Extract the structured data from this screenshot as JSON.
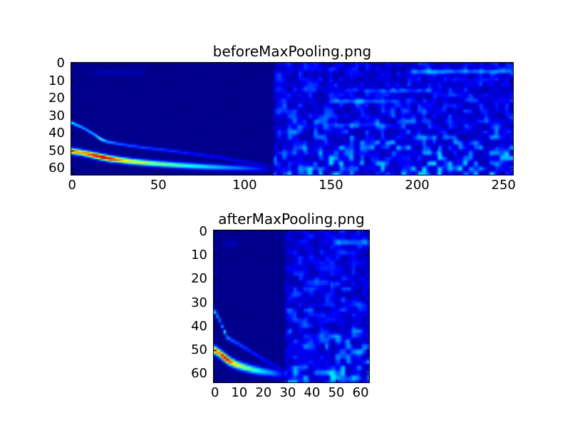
{
  "figure": {
    "background": "#ffffff",
    "spine_color": "#000000",
    "text_color": "#000000"
  },
  "chart_data": [
    {
      "type": "heatmap",
      "title": "beforeMaxPooling.png",
      "xlabel": "",
      "ylabel": "",
      "colormap": "jet",
      "grid": false,
      "legend": false,
      "grid_size": {
        "cols": 256,
        "rows": 64
      },
      "xlim": [
        -0.5,
        255.5
      ],
      "ylim": [
        63.5,
        -0.5
      ],
      "xticks": [
        0,
        50,
        100,
        150,
        200,
        250
      ],
      "yticks": [
        0,
        10,
        20,
        30,
        40,
        50,
        60
      ],
      "background_value": 0.018,
      "noise_region": {
        "x_start": 117,
        "base_value": 0.055,
        "amp_top": 0.06,
        "amp_bottom": 0.17,
        "y_power": 1.7,
        "blob_scale": 3.0,
        "fine_scale": 1.5,
        "fine_amp": 0.05,
        "seed": 12345
      },
      "streaks": [
        {
          "y": 4.5,
          "x0": 196,
          "x1": 255,
          "v": 0.17
        },
        {
          "y": 5.0,
          "x0": 12,
          "x1": 42,
          "v": 0.045
        },
        {
          "y": 15.5,
          "x0": 168,
          "x1": 208,
          "v": 0.1
        },
        {
          "y": 21.5,
          "x0": 148,
          "x1": 190,
          "v": 0.12
        },
        {
          "y": 35.0,
          "x0": 148,
          "x1": 186,
          "v": 0.08
        }
      ],
      "curves": [
        {
          "name": "main-chirp",
          "sigma": 1.15,
          "points": [
            [
              0,
              50.0,
              0.8
            ],
            [
              6,
              51.0,
              0.72
            ],
            [
              12,
              52.2,
              0.88
            ],
            [
              17,
              53.3,
              0.97
            ],
            [
              22,
              54.3,
              0.9
            ],
            [
              28,
              55.1,
              0.72
            ],
            [
              36,
              56.1,
              0.62
            ],
            [
              48,
              57.1,
              0.52
            ],
            [
              62,
              58.1,
              0.45
            ],
            [
              78,
              58.9,
              0.35
            ],
            [
              95,
              59.6,
              0.25
            ],
            [
              108,
              60.1,
              0.15
            ],
            [
              118,
              60.4,
              0.0
            ]
          ]
        },
        {
          "name": "faint-harmonic",
          "sigma": 0.65,
          "points": [
            [
              0,
              33.8,
              0.38
            ],
            [
              7,
              37.0,
              0.3
            ],
            [
              13,
              40.5,
              0.32
            ],
            [
              16,
              42.8,
              0.5
            ],
            [
              20,
              44.5,
              0.3
            ],
            [
              28,
              46.0,
              0.22
            ],
            [
              40,
              47.8,
              0.2
            ],
            [
              55,
              49.5,
              0.17
            ],
            [
              70,
              51.5,
              0.14
            ],
            [
              85,
              53.5,
              0.12
            ],
            [
              100,
              56.0,
              0.09
            ],
            [
              112,
              58.0,
              0.05
            ],
            [
              118,
              59.0,
              0.0
            ]
          ]
        }
      ]
    },
    {
      "type": "heatmap",
      "title": "afterMaxPooling.png",
      "xlabel": "",
      "ylabel": "",
      "colormap": "jet",
      "grid": false,
      "legend": false,
      "grid_size": {
        "cols": 64,
        "rows": 64
      },
      "xlim": [
        -0.5,
        63.5
      ],
      "ylim": [
        63.5,
        -0.5
      ],
      "xticks": [
        0,
        10,
        20,
        30,
        40,
        50,
        60
      ],
      "yticks": [
        0,
        10,
        20,
        30,
        40,
        50,
        60
      ],
      "background_value": 0.018,
      "noise_region": {
        "x_start": 29,
        "base_value": 0.055,
        "amp_top": 0.06,
        "amp_bottom": 0.17,
        "y_power": 1.7,
        "blob_scale": 2.2,
        "fine_scale": 1.2,
        "fine_amp": 0.05,
        "seed": 99
      },
      "streaks": [
        {
          "y": 4.5,
          "x0": 49,
          "x1": 64,
          "v": 0.17
        },
        {
          "y": 5.0,
          "x0": 3,
          "x1": 10,
          "v": 0.045
        },
        {
          "y": 15.5,
          "x0": 42,
          "x1": 52,
          "v": 0.1
        },
        {
          "y": 21.5,
          "x0": 37,
          "x1": 48,
          "v": 0.12
        },
        {
          "y": 35.0,
          "x0": 37,
          "x1": 47,
          "v": 0.08
        }
      ],
      "curves": [
        {
          "name": "main-chirp",
          "sigma": 1.15,
          "points": [
            [
              0,
              50.0,
              0.8
            ],
            [
              1.5,
              51.0,
              0.72
            ],
            [
              3,
              52.2,
              0.88
            ],
            [
              4.3,
              53.3,
              0.97
            ],
            [
              5.5,
              54.3,
              0.9
            ],
            [
              7,
              55.1,
              0.72
            ],
            [
              9,
              56.1,
              0.62
            ],
            [
              12,
              57.1,
              0.52
            ],
            [
              15.5,
              58.1,
              0.45
            ],
            [
              19.5,
              58.9,
              0.35
            ],
            [
              24,
              59.6,
              0.25
            ],
            [
              27,
              60.1,
              0.15
            ],
            [
              29.5,
              60.4,
              0.0
            ]
          ]
        },
        {
          "name": "faint-harmonic",
          "sigma": 0.65,
          "points": [
            [
              0,
              33.8,
              0.36
            ],
            [
              1.8,
              37.0,
              0.28
            ],
            [
              3.3,
              40.5,
              0.3
            ],
            [
              4.2,
              42.8,
              0.46
            ],
            [
              5,
              44.5,
              0.28
            ],
            [
              7,
              45.8,
              0.22
            ],
            [
              10,
              47.5,
              0.2
            ],
            [
              14,
              50.0,
              0.17
            ],
            [
              18,
              52.5,
              0.14
            ],
            [
              22,
              55.0,
              0.12
            ],
            [
              26,
              57.0,
              0.08
            ],
            [
              29.5,
              58.8,
              0.0
            ]
          ]
        }
      ]
    }
  ]
}
